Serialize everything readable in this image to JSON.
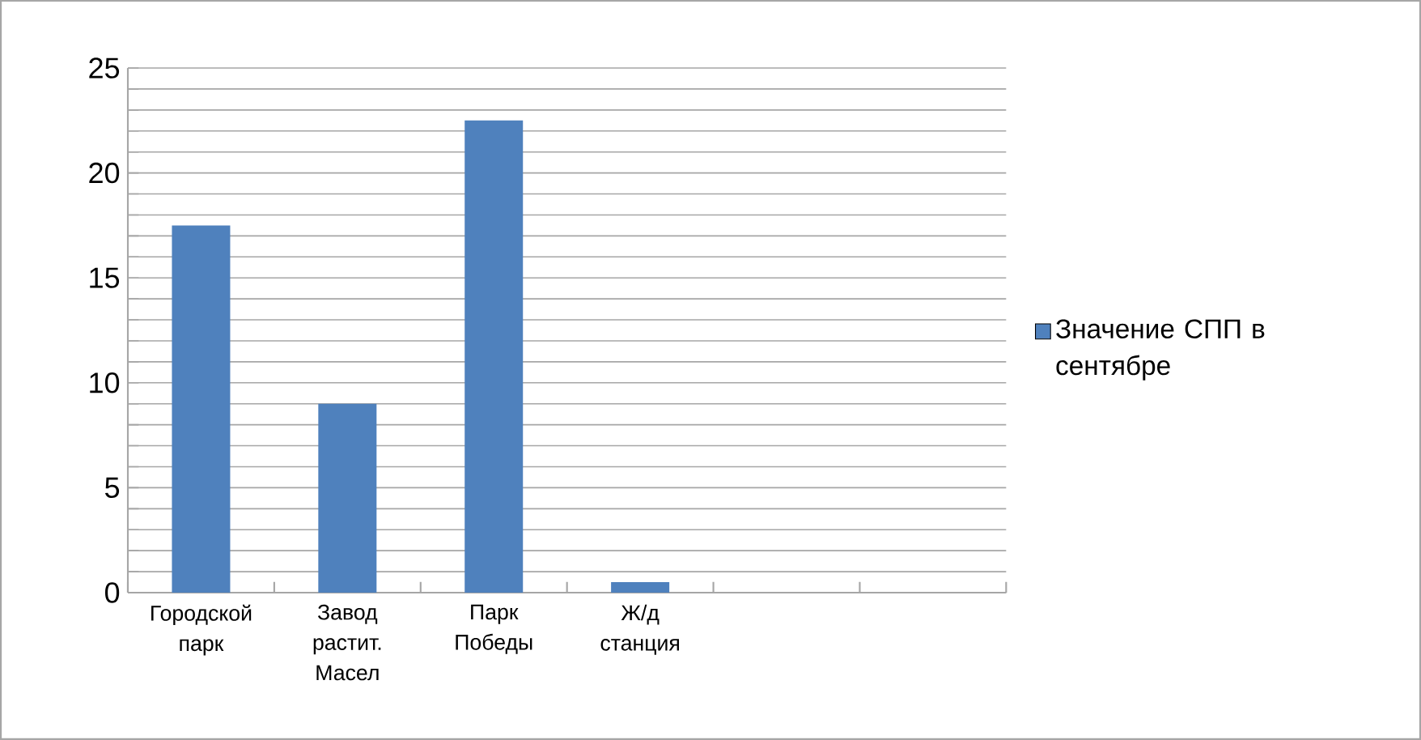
{
  "chart_data": {
    "type": "bar",
    "categories": [
      "Городской парк",
      "Завод растит. Масел",
      "Парк Победы",
      "Ж/д станция",
      null,
      null
    ],
    "series": [
      {
        "name": "Значение СПП в сентябре",
        "color": "#4f81bd",
        "values": [
          17.5,
          9,
          22.5,
          0.5,
          null,
          null
        ]
      }
    ],
    "ylim": [
      0,
      25
    ],
    "yticks": [
      0,
      {
        "value": 1,
        "label": null
      },
      {
        "value": 2,
        "label": null
      },
      {
        "value": 3,
        "label": null
      },
      {
        "value": 4,
        "label": null
      },
      5,
      {
        "value": 6,
        "label": null
      },
      {
        "value": 7,
        "label": null
      },
      {
        "value": 8,
        "label": null
      },
      {
        "value": 9,
        "label": null
      },
      10,
      {
        "value": 11,
        "label": null
      },
      {
        "value": 12,
        "label": null
      },
      {
        "value": 13,
        "label": null
      },
      {
        "value": 14,
        "label": null
      },
      15,
      {
        "value": 16,
        "label": null
      },
      {
        "value": 17,
        "label": null
      },
      {
        "value": 18,
        "label": null
      },
      {
        "value": 19,
        "label": null
      },
      20,
      {
        "value": 21,
        "label": null
      },
      {
        "value": 22,
        "label": null
      },
      {
        "value": 23,
        "label": null
      },
      {
        "value": 24,
        "label": null
      },
      25
    ],
    "grid": "y",
    "legend": "right"
  }
}
